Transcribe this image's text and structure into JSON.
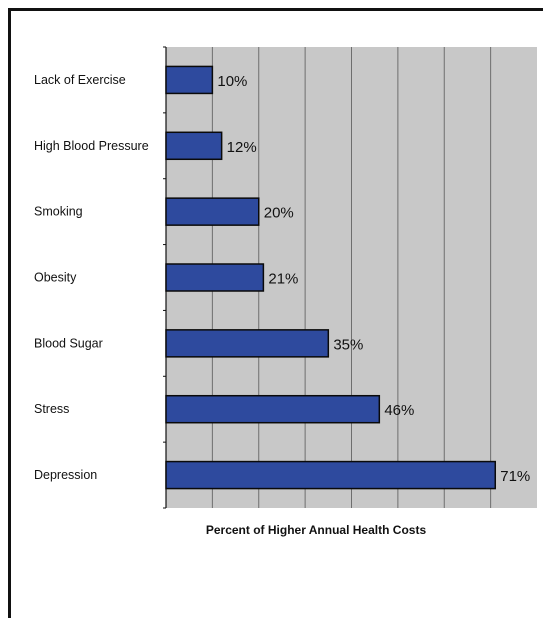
{
  "chart_data": {
    "type": "bar",
    "orientation": "horizontal",
    "categories": [
      "Lack of Exercise",
      "High Blood Pressure",
      "Smoking",
      "Obesity",
      "Blood Sugar",
      "Stress",
      "Depression"
    ],
    "values": [
      10,
      12,
      20,
      21,
      35,
      46,
      71
    ],
    "value_labels": [
      "10%",
      "12%",
      "20%",
      "21%",
      "35%",
      "46%",
      "71%"
    ],
    "title": "",
    "xlabel": "Percent of Higher Annual Health Costs",
    "ylabel": "",
    "xlim": [
      0,
      80
    ],
    "grid": true,
    "legend": "none",
    "colors": {
      "bar": "#2e4a9e",
      "bar_edge": "#0a0a0a",
      "plot_bg": "#c8c8c8",
      "grid": "#6e6e6e"
    }
  }
}
